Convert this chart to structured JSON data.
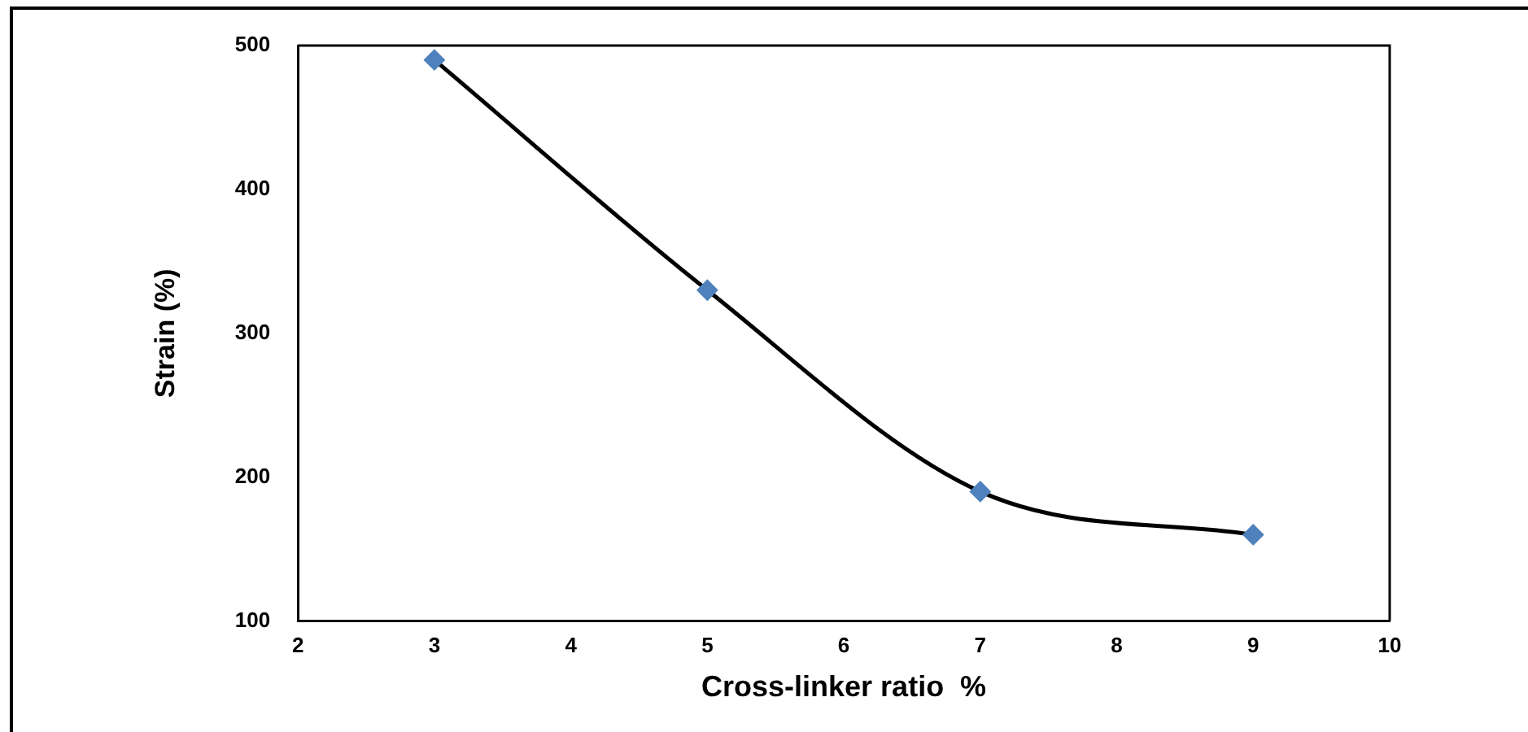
{
  "chart_data": {
    "type": "scatter",
    "xlabel": "Cross-linker ratio  %",
    "ylabel": "Strain (%)",
    "xlim": [
      2,
      10
    ],
    "xticks": [
      2,
      3,
      4,
      5,
      6,
      7,
      8,
      9,
      10
    ],
    "ylim": [
      100,
      500
    ],
    "yticks": [
      100,
      200,
      300,
      400,
      500
    ],
    "grid": false,
    "legend": false,
    "series": [
      {
        "type": "line",
        "marker": "none",
        "color": "#000000",
        "x": [
          3,
          5,
          7,
          9
        ],
        "values": [
          490,
          330,
          190,
          160
        ]
      },
      {
        "marker": "diamond",
        "color": "#4f81bd",
        "x": [
          3,
          5,
          7,
          9
        ],
        "values": [
          490,
          330,
          190,
          160
        ]
      }
    ]
  }
}
